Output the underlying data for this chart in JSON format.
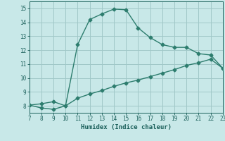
{
  "title": "",
  "xlabel": "Humidex (Indice chaleur)",
  "ylabel": "",
  "xlim": [
    7,
    23
  ],
  "ylim": [
    7.5,
    15.5
  ],
  "xticks": [
    7,
    8,
    9,
    10,
    11,
    12,
    13,
    14,
    15,
    16,
    17,
    18,
    19,
    20,
    21,
    22,
    23
  ],
  "yticks": [
    8,
    9,
    10,
    11,
    12,
    13,
    14,
    15
  ],
  "line1_x": [
    7,
    8,
    9,
    10,
    11,
    12,
    13,
    14,
    15,
    16,
    17,
    18,
    19,
    20,
    21,
    22,
    23
  ],
  "line1_y": [
    8.05,
    7.85,
    7.75,
    8.0,
    12.4,
    14.2,
    14.6,
    14.95,
    14.9,
    13.6,
    12.9,
    12.4,
    12.2,
    12.2,
    11.75,
    11.65,
    10.7
  ],
  "line2_x": [
    7,
    8,
    9,
    10,
    11,
    12,
    13,
    14,
    15,
    16,
    17,
    18,
    19,
    20,
    21,
    22,
    23
  ],
  "line2_y": [
    8.05,
    8.15,
    8.3,
    8.0,
    8.55,
    8.85,
    9.1,
    9.4,
    9.65,
    9.85,
    10.1,
    10.35,
    10.6,
    10.9,
    11.1,
    11.35,
    10.7
  ],
  "line_color": "#2d7d6e",
  "bg_color": "#c8e8e8",
  "grid_color": "#a0c8c8",
  "tick_color": "#1a5f5a",
  "label_color": "#1a5f5a",
  "marker": "D",
  "markersize": 2.5,
  "linewidth": 1.0
}
